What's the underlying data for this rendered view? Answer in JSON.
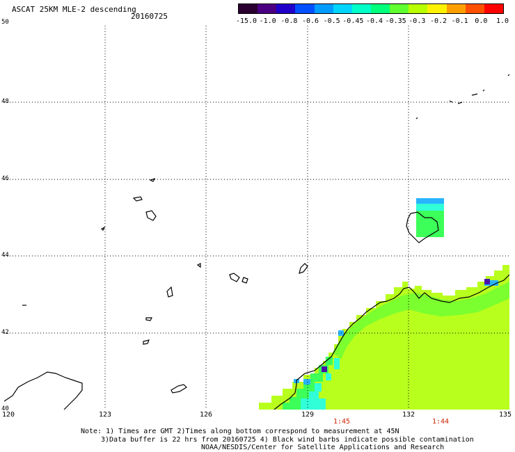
{
  "title": "ASCAT 25KM MLE-2 descending",
  "date": "20160725",
  "colorbar": {
    "labels": [
      "-15.0",
      "-1.0",
      "-0.8",
      "-0.6",
      "-0.5",
      "-0.45",
      "-0.4",
      "-0.35",
      "-0.3",
      "-0.2",
      "-0.1",
      "0.0",
      "1.0"
    ],
    "colors": [
      "#2a0030",
      "#4b0082",
      "#2000c8",
      "#0050ff",
      "#009cff",
      "#00d4ff",
      "#00ffc8",
      "#00ff7a",
      "#60ff30",
      "#b8ff00",
      "#fff200",
      "#ffa000",
      "#ff5000",
      "#ff0000"
    ]
  },
  "y_axis": {
    "labels": [
      "50",
      "48",
      "46",
      "44",
      "42",
      "40"
    ]
  },
  "x_axis": {
    "labels": [
      "120",
      "123",
      "126",
      "129",
      "132",
      "135"
    ]
  },
  "time_labels": [
    "1:45",
    "1:44"
  ],
  "notes": {
    "line1": "Note: 1) Times are GMT 2)Times along bottom correspond to measurement at 45N",
    "line2": "3)Data buffer is 22 hrs from 20160725 4) Black wind barbs indicate possible contamination",
    "line3": "NOAA/NESDIS/Center for Satellite Applications and Research"
  },
  "swath_colors": {
    "main": "#b8ff1e",
    "band": "#7bff2e",
    "green": "#3cff5a",
    "cyan": "#30ffd8",
    "blue": "#28b4ff",
    "purple": "#4a12a8"
  }
}
